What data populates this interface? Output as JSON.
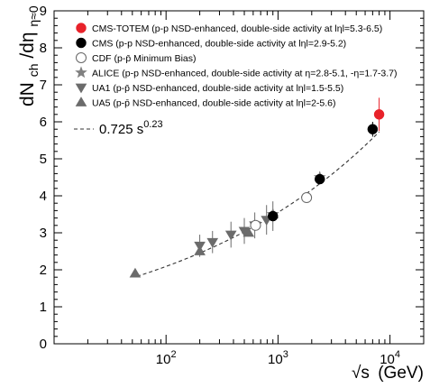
{
  "chart_data": {
    "type": "scatter",
    "title": "",
    "xlabel_main": "√s",
    "xlabel_unit": "(GeV)",
    "ylabel_main": "dN",
    "ylabel_sub1": "ch",
    "ylabel_mid": "/dη",
    "ylabel_sub2": "η≈0",
    "xscale": "log",
    "xlim": [
      10,
      20000
    ],
    "ylim": [
      0,
      9
    ],
    "grid": false,
    "legend_position": "top-left",
    "x_tick_labels": [
      {
        "value": 100,
        "base": "10",
        "exp": "2"
      },
      {
        "value": 1000,
        "base": "10",
        "exp": "3"
      },
      {
        "value": 10000,
        "base": "10",
        "exp": "4"
      }
    ],
    "y_ticks": [
      0,
      1,
      2,
      3,
      4,
      5,
      6,
      7,
      8,
      9
    ],
    "y_tick_labels": [
      "0",
      "1",
      "2",
      "3",
      "4",
      "5",
      "6",
      "7",
      "8",
      "9"
    ],
    "fit": {
      "label_text": "0.725 s",
      "label_exp": "0.23",
      "a": 0.725,
      "b": 0.23,
      "x_range": [
        55,
        8000
      ],
      "color": "#333333"
    },
    "series": [
      {
        "name": "CMS-TOTEM (p-p NSD-enhanced, double-side activity at lηl=5.3-6.5)",
        "marker": "circle",
        "filled": true,
        "color": "#e8222a",
        "points": [
          {
            "x": 8000,
            "y": 6.2,
            "err": 0.45
          }
        ]
      },
      {
        "name": "CMS (p-p NSD-enhanced, double-side activity at lηl=2.9-5.2)",
        "marker": "circle",
        "filled": true,
        "color": "#000000",
        "points": [
          {
            "x": 7000,
            "y": 5.8,
            "err": 0.2
          },
          {
            "x": 2360,
            "y": 4.45,
            "err": 0.12
          },
          {
            "x": 900,
            "y": 3.45,
            "err": 0.12
          }
        ]
      },
      {
        "name": "CDF (p-p̄ Minimum Bias)",
        "marker": "circle",
        "filled": false,
        "color": "#666666",
        "points": [
          {
            "x": 1800,
            "y": 3.95,
            "err": 0.1
          },
          {
            "x": 630,
            "y": 3.2,
            "err": 0.1
          }
        ]
      },
      {
        "name": "ALICE (p-p NSD-enhanced, double-side activity at η=2.8-5.1, -η=1.7-3.7)",
        "marker": "star",
        "filled": true,
        "color": "#808080",
        "points": [
          {
            "x": 2360,
            "y": 4.5,
            "err": 0.15
          },
          {
            "x": 900,
            "y": 3.5,
            "err": 0.15
          }
        ]
      },
      {
        "name": "UA1 (p-p̄ NSD-enhanced, double-side activity at lηl=1.5-5.5)",
        "marker": "triangle-down",
        "filled": true,
        "color": "#6b6b6b",
        "points": [
          {
            "x": 200,
            "y": 2.65,
            "err": 0.3
          },
          {
            "x": 260,
            "y": 2.75,
            "err": 0.3
          },
          {
            "x": 380,
            "y": 2.95,
            "err": 0.35
          },
          {
            "x": 500,
            "y": 3.05,
            "err": 0.35
          },
          {
            "x": 620,
            "y": 3.2,
            "err": 0.35
          },
          {
            "x": 790,
            "y": 3.35,
            "err": 0.4
          },
          {
            "x": 900,
            "y": 3.45,
            "err": 0.4
          }
        ]
      },
      {
        "name": "UA5 (p-p̄ NSD-enhanced, double-side activity at lηl=2-5.6)",
        "marker": "triangle-up",
        "filled": true,
        "color": "#6b6b6b",
        "points": [
          {
            "x": 53,
            "y": 1.9,
            "err": 0.05
          },
          {
            "x": 200,
            "y": 2.5,
            "err": 0.1
          },
          {
            "x": 546,
            "y": 3.0,
            "err": 0.1
          },
          {
            "x": 900,
            "y": 3.5,
            "err": 0.1
          }
        ]
      }
    ]
  }
}
